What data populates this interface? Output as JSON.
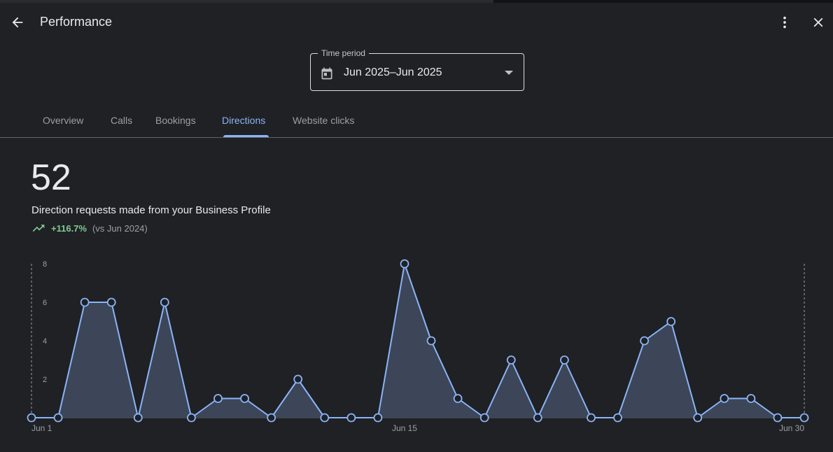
{
  "header": {
    "title": "Performance",
    "back_icon": "arrow-back-icon",
    "more_icon": "more-vert-icon",
    "close_icon": "close-icon"
  },
  "time_period": {
    "label": "Time period",
    "value": "Jun 2025–Jun 2025",
    "icon": "calendar-icon"
  },
  "tabs": [
    {
      "label": "Overview",
      "active": false
    },
    {
      "label": "Calls",
      "active": false
    },
    {
      "label": "Bookings",
      "active": false
    },
    {
      "label": "Directions",
      "active": true
    },
    {
      "label": "Website clicks",
      "active": false
    }
  ],
  "metric": {
    "value": "52",
    "description": "Direction requests made from your Business Profile",
    "change": "+116.7%",
    "comparison": "(vs Jun 2024)",
    "trend_icon": "trending-up-icon"
  },
  "colors": {
    "accent": "#8ab4f8",
    "positive": "#81c995",
    "background": "#202124"
  },
  "chart_data": {
    "type": "area",
    "x": [
      1,
      2,
      3,
      4,
      5,
      6,
      7,
      8,
      9,
      10,
      11,
      12,
      13,
      14,
      15,
      16,
      17,
      18,
      19,
      20,
      21,
      22,
      23,
      24,
      25,
      26,
      27,
      28,
      29,
      30
    ],
    "values": [
      0,
      0,
      6,
      6,
      0,
      6,
      0,
      1,
      1,
      0,
      2,
      0,
      0,
      0,
      8,
      4,
      1,
      0,
      3,
      0,
      3,
      0,
      0,
      4,
      5,
      0,
      1,
      1,
      0,
      0
    ],
    "y_ticks": [
      "2",
      "4",
      "6",
      "8"
    ],
    "ylim": [
      0,
      8
    ],
    "x_tick_labels": [
      {
        "x": 1,
        "label": "Jun 1"
      },
      {
        "x": 15,
        "label": "Jun 15"
      },
      {
        "x": 30,
        "label": "Jun 30"
      }
    ],
    "grid": false
  }
}
